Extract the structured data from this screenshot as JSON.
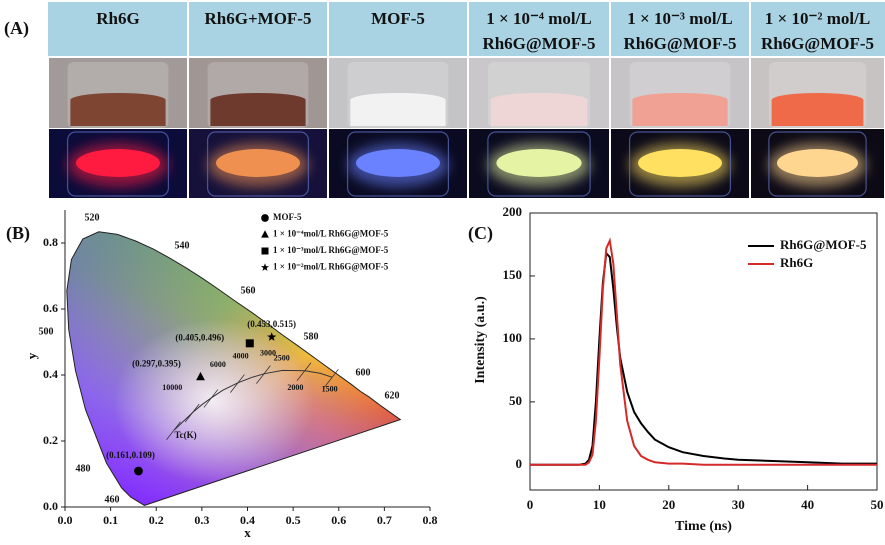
{
  "panel_a": {
    "label": "(A)",
    "columns": [
      [
        "Rh6G"
      ],
      [
        "Rh6G+MOF-5"
      ],
      [
        "MOF-5"
      ],
      [
        "1 × 10⁻⁴ mol/L",
        "Rh6G@MOF-5"
      ],
      [
        "1 × 10⁻³ mol/L",
        "Rh6G@MOF-5"
      ],
      [
        "1 × 10⁻² mol/L",
        "Rh6G@MOF-5"
      ]
    ]
  },
  "chart_data": [
    {
      "type": "scatter",
      "panel_label": "(B)",
      "xlabel": "x",
      "ylabel": "y",
      "xlim": [
        0,
        0.8
      ],
      "ylim": [
        0,
        0.9
      ],
      "xticks": [
        {
          "value": 0,
          "label": "0.0"
        },
        0.1,
        0.2,
        0.3,
        0.4,
        0.5,
        0.6,
        0.7,
        0.8
      ],
      "yticks": [
        {
          "value": 0,
          "label": "0.0"
        },
        0.2,
        0.4,
        0.6,
        0.8
      ],
      "series": [
        {
          "name": "MOF-5",
          "marker": "circle",
          "color": "#000000",
          "x": [
            0.161
          ],
          "values": [
            0.109
          ],
          "value_labels": [
            "(0.161,0.109)"
          ]
        },
        {
          "name": "1 × 10⁻⁴mol/L Rh6G@MOF-5",
          "marker": "triangle",
          "color": "#000000",
          "x": [
            0.297
          ],
          "values": [
            0.395
          ],
          "value_labels": [
            "(0.297,0.395)"
          ]
        },
        {
          "name": "1 × 10⁻³mol/L Rh6G@MOF-5",
          "marker": "square",
          "color": "#000000",
          "x": [
            0.405
          ],
          "values": [
            0.496
          ],
          "value_labels": [
            "(0.405,0.496)"
          ]
        },
        {
          "name": "1 × 10⁻²mol/L Rh6G@MOF-5",
          "marker": "star",
          "color": "#000000",
          "x": [
            0.453
          ],
          "values": [
            0.515
          ],
          "value_labels": [
            "(0.453,0.515)"
          ]
        }
      ],
      "wavelength_labels": [
        "520",
        "540",
        "560",
        "580",
        "500",
        "600",
        "620",
        "480",
        "460"
      ],
      "cct_labels": [
        "10000",
        "6000",
        "4000",
        "3000",
        "2500",
        "2000",
        "1500"
      ],
      "cct_axis_label": "Tc(K)"
    },
    {
      "type": "line",
      "panel_label": "(C)",
      "xlabel": "Time (ns)",
      "ylabel": "Intensity (a.u.)",
      "xlim": [
        0,
        50
      ],
      "ylim": [
        -20,
        200
      ],
      "xticks": [
        0,
        10,
        20,
        30,
        40,
        50
      ],
      "yticks": [
        0,
        50,
        100,
        150,
        200
      ],
      "legend": "upper right",
      "x": [
        0,
        2,
        4,
        6,
        7,
        8,
        8.5,
        9,
        9.5,
        10,
        10.5,
        11,
        11.5,
        12,
        12.5,
        13,
        14,
        15,
        16,
        17,
        18,
        20,
        22,
        25,
        28,
        30,
        35,
        40,
        45,
        50
      ],
      "series": [
        {
          "name": "Rh6G@MOF-5",
          "color": "#000000",
          "values": [
            0,
            0,
            0,
            0,
            0,
            1,
            4,
            15,
            50,
            100,
            145,
            168,
            165,
            140,
            110,
            85,
            58,
            42,
            33,
            26,
            20,
            14,
            10,
            7,
            5,
            4,
            3,
            2,
            1,
            1
          ]
        },
        {
          "name": "Rh6G",
          "color": "#d42a2a",
          "values": [
            0,
            0,
            0,
            0,
            0,
            0,
            2,
            8,
            35,
            85,
            140,
            172,
            178,
            160,
            120,
            80,
            35,
            15,
            7,
            4,
            2,
            1,
            1,
            0,
            0,
            0,
            0,
            0,
            0,
            0
          ]
        }
      ]
    }
  ]
}
